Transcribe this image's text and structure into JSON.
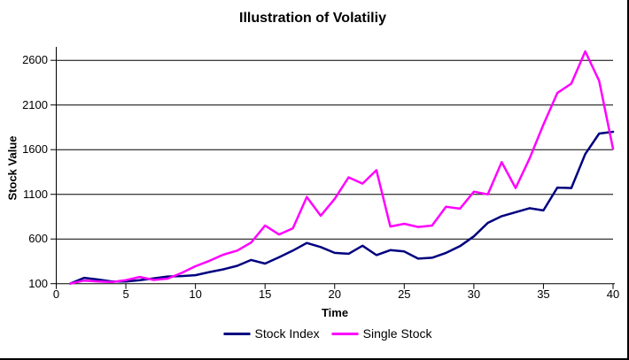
{
  "chart_data": {
    "type": "line",
    "title": "Illustration of Volatiliy",
    "xlabel": "Time",
    "ylabel": "Stock Value",
    "x": [
      1,
      2,
      3,
      4,
      5,
      6,
      7,
      8,
      9,
      10,
      11,
      12,
      13,
      14,
      15,
      16,
      17,
      18,
      19,
      20,
      21,
      22,
      23,
      24,
      25,
      26,
      27,
      28,
      29,
      30,
      31,
      32,
      33,
      34,
      35,
      36,
      37,
      38,
      39,
      40
    ],
    "series": [
      {
        "name": "Stock Index",
        "color": "#000080",
        "values": [
          100,
          165,
          147,
          125,
          125,
          140,
          158,
          180,
          185,
          195,
          230,
          260,
          300,
          365,
          325,
          395,
          470,
          555,
          510,
          445,
          435,
          525,
          420,
          475,
          460,
          380,
          390,
          445,
          520,
          630,
          780,
          855,
          900,
          945,
          920,
          1175,
          1170,
          1550,
          1780,
          1800
        ]
      },
      {
        "name": "Single Stock",
        "color": "#FF00FF",
        "values": [
          100,
          135,
          124,
          118,
          140,
          175,
          142,
          156,
          220,
          295,
          355,
          425,
          470,
          560,
          750,
          650,
          720,
          1070,
          860,
          1050,
          1290,
          1220,
          1370,
          740,
          770,
          735,
          750,
          960,
          940,
          1130,
          1100,
          1460,
          1170,
          1500,
          1880,
          2235,
          2340,
          2700,
          2370,
          1610
        ]
      }
    ],
    "x_ticks": [
      0,
      5,
      10,
      15,
      20,
      25,
      30,
      35,
      40
    ],
    "y_ticks": [
      100,
      600,
      1100,
      1600,
      2100,
      2600
    ],
    "xlim": [
      0,
      40
    ],
    "ylim": [
      100,
      2750
    ],
    "grid": "horizontal-major",
    "legend_position": "bottom",
    "axis_color": "#000000",
    "background_color": "#FFFFFF"
  }
}
